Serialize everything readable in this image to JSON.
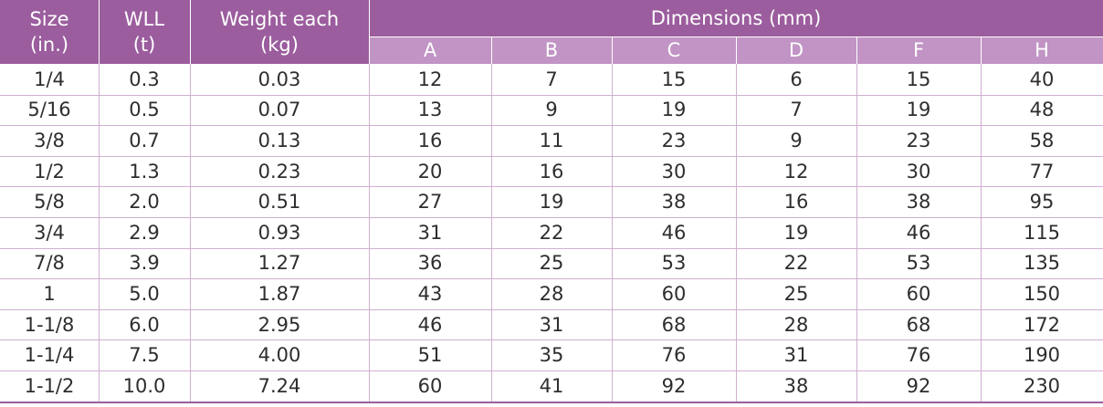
{
  "table": {
    "header": {
      "size": [
        "Size",
        "(in.)"
      ],
      "wll": [
        "WLL",
        "(t)"
      ],
      "weight": [
        "Weight each",
        "(kg)"
      ],
      "dimensions": "Dimensions (mm)",
      "dimension_columns": [
        "A",
        "B",
        "C",
        "D",
        "F",
        "H"
      ]
    },
    "rows": [
      [
        "1/4",
        "0.3",
        "0.03",
        "12",
        "7",
        "15",
        "6",
        "15",
        "40"
      ],
      [
        "5/16",
        "0.5",
        "0.07",
        "13",
        "9",
        "19",
        "7",
        "19",
        "48"
      ],
      [
        "3/8",
        "0.7",
        "0.13",
        "16",
        "11",
        "23",
        "9",
        "23",
        "58"
      ],
      [
        "1/2",
        "1.3",
        "0.23",
        "20",
        "16",
        "30",
        "12",
        "30",
        "77"
      ],
      [
        "5/8",
        "2.0",
        "0.51",
        "27",
        "19",
        "38",
        "16",
        "38",
        "95"
      ],
      [
        "3/4",
        "2.9",
        "0.93",
        "31",
        "22",
        "46",
        "19",
        "46",
        "115"
      ],
      [
        "7/8",
        "3.9",
        "1.27",
        "36",
        "25",
        "53",
        "22",
        "53",
        "135"
      ],
      [
        "1",
        "5.0",
        "1.87",
        "43",
        "28",
        "60",
        "25",
        "60",
        "150"
      ],
      [
        "1-1/8",
        "6.0",
        "2.95",
        "46",
        "31",
        "68",
        "28",
        "68",
        "172"
      ],
      [
        "1-1/4",
        "7.5",
        "4.00",
        "51",
        "35",
        "76",
        "31",
        "76",
        "190"
      ],
      [
        "1-1/2",
        "10.0",
        "7.24",
        "60",
        "41",
        "92",
        "38",
        "92",
        "230"
      ]
    ]
  }
}
